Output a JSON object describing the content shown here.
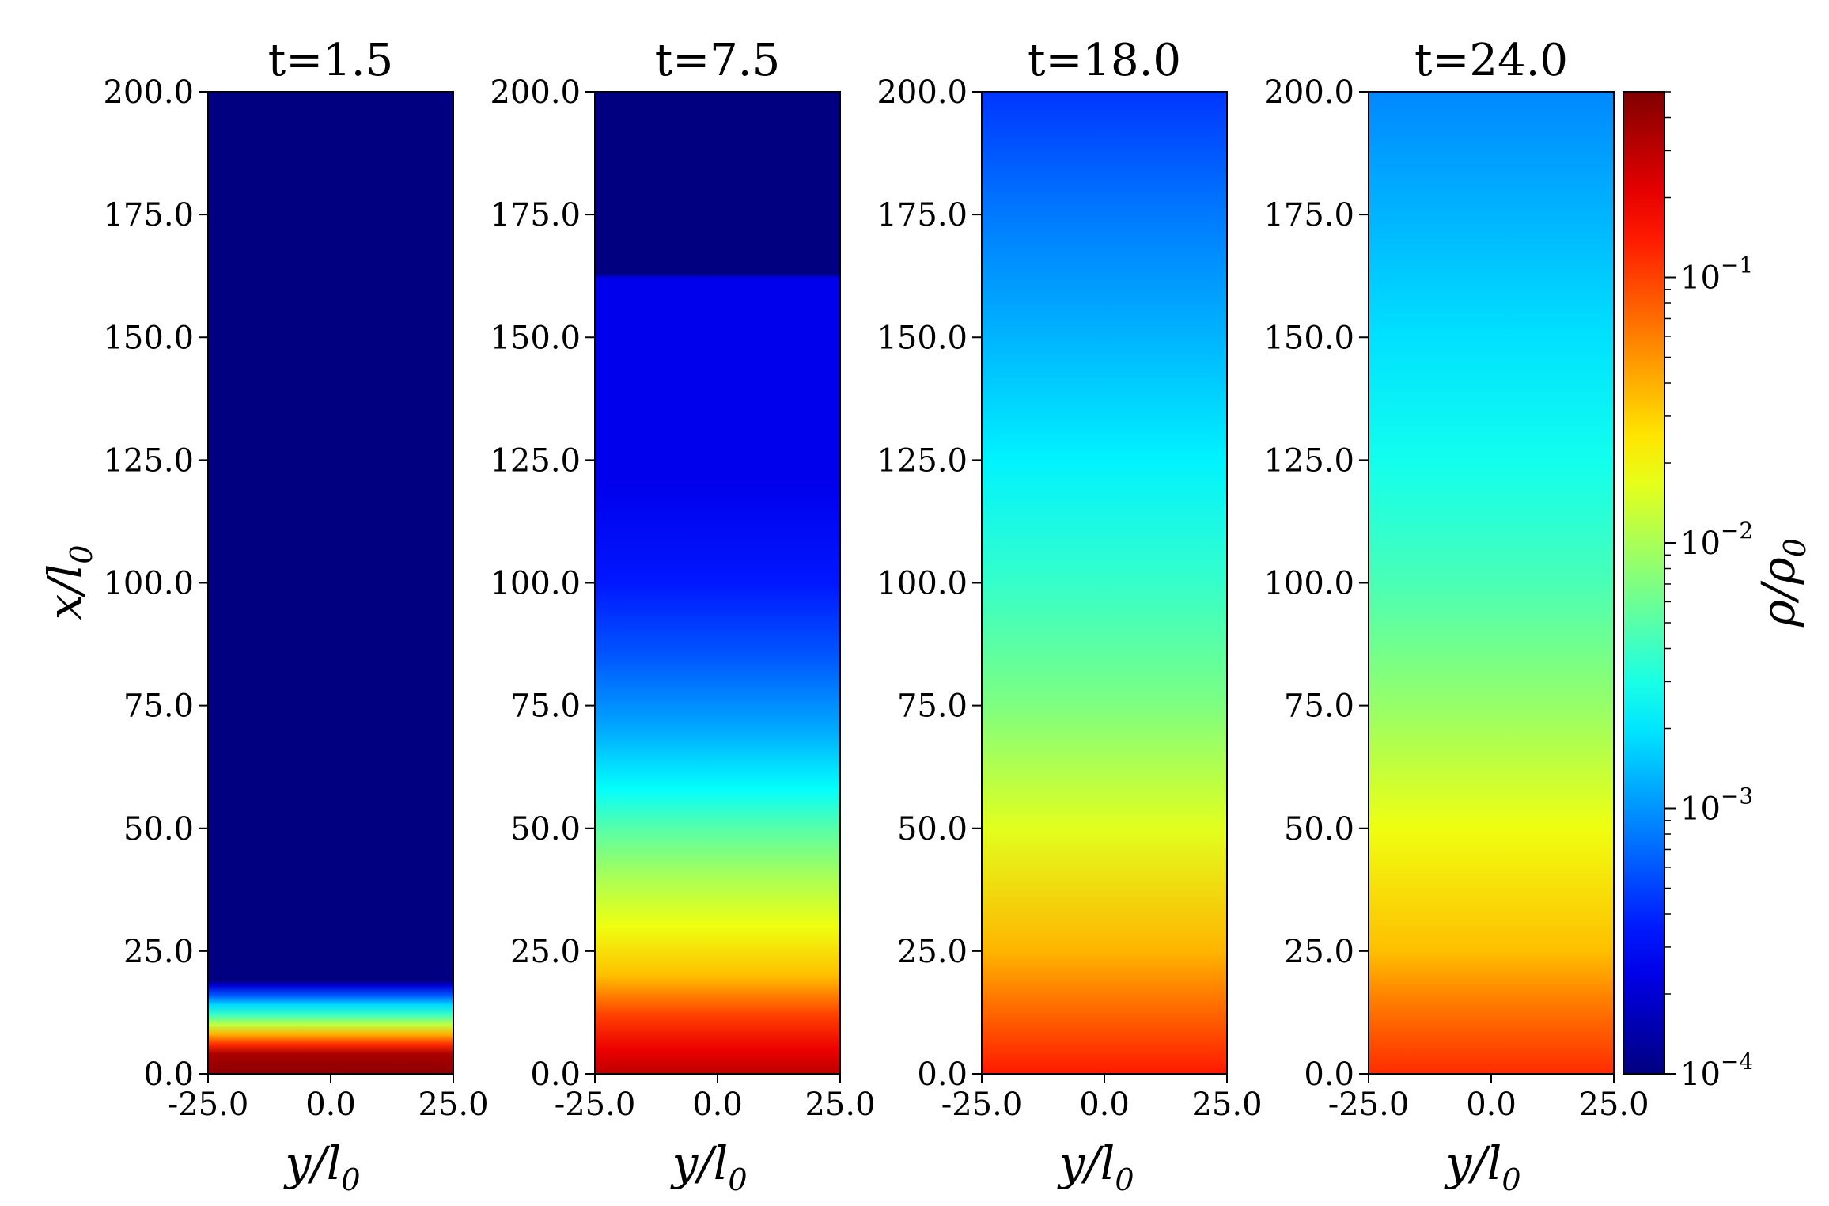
{
  "chart_data": {
    "type": "heatmap",
    "colormap": "jet",
    "color_scale": "log",
    "clim": [
      0.0001,
      0.5
    ],
    "xlabel_base": "y/l",
    "xlabel_sub": "0",
    "ylabel_base": "x/l",
    "ylabel_sub": "0",
    "xlim": [
      -25,
      25
    ],
    "ylim": [
      0,
      200
    ],
    "xticks": [
      "-25.0",
      "0.0",
      "25.0"
    ],
    "yticks": [
      "0.0",
      "25.0",
      "50.0",
      "75.0",
      "100.0",
      "125.0",
      "150.0",
      "175.0",
      "200.0"
    ],
    "colorbar": {
      "label_base": "ρ/ρ",
      "label_sub": "0",
      "ticks": [
        {
          "base": "10",
          "exp": "−4",
          "value": 0.0001
        },
        {
          "base": "10",
          "exp": "−3",
          "value": 0.001
        },
        {
          "base": "10",
          "exp": "−2",
          "value": 0.01
        },
        {
          "base": "10",
          "exp": "−1",
          "value": 0.1
        }
      ]
    },
    "panels": [
      {
        "title": "t=1.5",
        "profile": [
          {
            "x": 0,
            "rho": 0.45
          },
          {
            "x": 4,
            "rho": 0.35
          },
          {
            "x": 6,
            "rho": 0.12
          },
          {
            "x": 8,
            "rho": 0.04
          },
          {
            "x": 10,
            "rho": 0.012
          },
          {
            "x": 12,
            "rho": 0.004
          },
          {
            "x": 14,
            "rho": 0.0018
          },
          {
            "x": 16,
            "rho": 0.0006
          },
          {
            "x": 18,
            "rho": 0.0002
          },
          {
            "x": 19,
            "rho": 0.0001
          },
          {
            "x": 200,
            "rho": 0.0001
          }
        ]
      },
      {
        "title": "t=7.5",
        "profile": [
          {
            "x": 0,
            "rho": 0.3
          },
          {
            "x": 5,
            "rho": 0.2
          },
          {
            "x": 12,
            "rho": 0.1
          },
          {
            "x": 20,
            "rho": 0.035
          },
          {
            "x": 30,
            "rho": 0.018
          },
          {
            "x": 40,
            "rho": 0.01
          },
          {
            "x": 50,
            "rho": 0.005
          },
          {
            "x": 58,
            "rho": 0.0025
          },
          {
            "x": 70,
            "rho": 0.0012
          },
          {
            "x": 85,
            "rho": 0.0006
          },
          {
            "x": 100,
            "rho": 0.00035
          },
          {
            "x": 120,
            "rho": 0.00025
          },
          {
            "x": 162,
            "rho": 0.00025
          },
          {
            "x": 163,
            "rho": 0.0001
          },
          {
            "x": 200,
            "rho": 0.0001
          }
        ]
      },
      {
        "title": "t=18.0",
        "profile": [
          {
            "x": 0,
            "rho": 0.14
          },
          {
            "x": 15,
            "rho": 0.065
          },
          {
            "x": 25,
            "rho": 0.038
          },
          {
            "x": 50,
            "rho": 0.016
          },
          {
            "x": 75,
            "rho": 0.007
          },
          {
            "x": 100,
            "rho": 0.0038
          },
          {
            "x": 125,
            "rho": 0.0022
          },
          {
            "x": 150,
            "rho": 0.0013
          },
          {
            "x": 175,
            "rho": 0.0008
          },
          {
            "x": 200,
            "rho": 0.00045
          }
        ]
      },
      {
        "title": "t=24.0",
        "profile": [
          {
            "x": 0,
            "rho": 0.12
          },
          {
            "x": 15,
            "rho": 0.06
          },
          {
            "x": 25,
            "rho": 0.035
          },
          {
            "x": 50,
            "rho": 0.018
          },
          {
            "x": 75,
            "rho": 0.0085
          },
          {
            "x": 100,
            "rho": 0.0045
          },
          {
            "x": 125,
            "rho": 0.0028
          },
          {
            "x": 150,
            "rho": 0.0019
          },
          {
            "x": 175,
            "rho": 0.0013
          },
          {
            "x": 200,
            "rho": 0.0009
          }
        ]
      }
    ]
  }
}
